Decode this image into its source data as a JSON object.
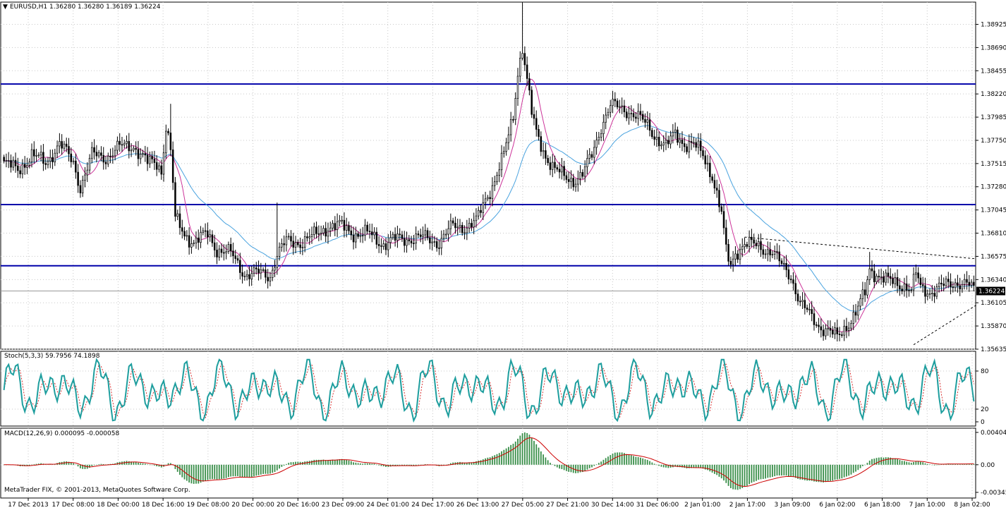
{
  "header": {
    "symbol_line": "EURUSD,H1  1.36280 1.36280 1.36189 1.36224",
    "collapse_glyph": "▼"
  },
  "copyright": "MetaTrader FIX, © 2001-2013, MetaQuotes Software Corp.",
  "colors": {
    "bull": "#ffffff",
    "bear": "#000000",
    "ma_fast": "#cc3399",
    "ma_slow": "#4aa3df",
    "hline": "#0000aa",
    "stoch_main": "#1e9e9e",
    "stoch_signal": "#cc0000",
    "macd_hist": "#3a8f4a",
    "macd_signal": "#cc0000",
    "grid": "#c8c8c8"
  },
  "chart_data": [
    {
      "type": "candlestick",
      "panel": "price",
      "ylim": [
        1.35635,
        1.3915
      ],
      "grid": true,
      "yticks": [
        "1.38925",
        "1.38690",
        "1.38455",
        "1.38220",
        "1.37985",
        "1.37750",
        "1.37515",
        "1.37280",
        "1.37045",
        "1.36810",
        "1.36575",
        "1.36340",
        "1.36105",
        "1.35870",
        "1.35635"
      ],
      "current_price": "1.36224",
      "xticks": [
        "17 Dec 2013",
        "17 Dec 08:00",
        "18 Dec 00:00",
        "18 Dec 16:00",
        "19 Dec 08:00",
        "20 Dec 00:00",
        "20 Dec 16:00",
        "23 Dec 09:00",
        "24 Dec 01:00",
        "24 Dec 17:00",
        "26 Dec 13:00",
        "27 Dec 05:00",
        "27 Dec 21:00",
        "30 Dec 14:00",
        "31 Dec 06:00",
        "2 Jan 01:00",
        "2 Jan 17:00",
        "3 Jan 09:00",
        "6 Jan 02:00",
        "6 Jan 18:00",
        "7 Jan 10:00",
        "8 Jan 02:00"
      ],
      "horizontal_levels": [
        1.3832,
        1.371,
        1.3648
      ],
      "trendlines": [
        {
          "from": [
            320,
            1.3677
          ],
          "to": [
            420,
            1.3655
          ]
        },
        {
          "from": [
            393,
            1.3568
          ],
          "to": [
            420,
            1.3608
          ]
        }
      ],
      "close_path": [
        [
          0,
          1.3752
        ],
        [
          6,
          1.3745
        ],
        [
          12,
          1.376
        ],
        [
          18,
          1.3752
        ],
        [
          24,
          1.3772
        ],
        [
          30,
          1.3752
        ],
        [
          33,
          1.3728
        ],
        [
          38,
          1.376
        ],
        [
          44,
          1.3758
        ],
        [
          50,
          1.3768
        ],
        [
          56,
          1.377
        ],
        [
          62,
          1.3752
        ],
        [
          66,
          1.3752
        ],
        [
          68,
          1.3745
        ],
        [
          70,
          1.379
        ],
        [
          72,
          1.3765
        ],
        [
          74,
          1.3695
        ],
        [
          78,
          1.368
        ],
        [
          82,
          1.3672
        ],
        [
          88,
          1.368
        ],
        [
          92,
          1.3665
        ],
        [
          98,
          1.366
        ],
        [
          104,
          1.364
        ],
        [
          110,
          1.364
        ],
        [
          115,
          1.3638
        ],
        [
          118,
          1.366
        ],
        [
          122,
          1.3672
        ],
        [
          128,
          1.3672
        ],
        [
          134,
          1.3678
        ],
        [
          140,
          1.3688
        ],
        [
          146,
          1.3688
        ],
        [
          152,
          1.368
        ],
        [
          158,
          1.368
        ],
        [
          164,
          1.367
        ],
        [
          170,
          1.3675
        ],
        [
          176,
          1.3676
        ],
        [
          182,
          1.3676
        ],
        [
          188,
          1.3672
        ],
        [
          194,
          1.3688
        ],
        [
          200,
          1.3688
        ],
        [
          204,
          1.3692
        ],
        [
          208,
          1.3715
        ],
        [
          212,
          1.3735
        ],
        [
          216,
          1.376
        ],
        [
          218,
          1.378
        ],
        [
          220,
          1.38
        ],
        [
          222,
          1.3845
        ],
        [
          224,
          1.387
        ],
        [
          226,
          1.3835
        ],
        [
          228,
          1.3802
        ],
        [
          230,
          1.3782
        ],
        [
          234,
          1.376
        ],
        [
          238,
          1.3745
        ],
        [
          242,
          1.3738
        ],
        [
          246,
          1.3735
        ],
        [
          250,
          1.374
        ],
        [
          254,
          1.376
        ],
        [
          258,
          1.379
        ],
        [
          262,
          1.381
        ],
        [
          266,
          1.3808
        ],
        [
          270,
          1.3805
        ],
        [
          274,
          1.3798
        ],
        [
          278,
          1.379
        ],
        [
          282,
          1.3778
        ],
        [
          286,
          1.3768
        ],
        [
          290,
          1.3782
        ],
        [
          294,
          1.3772
        ],
        [
          298,
          1.377
        ],
        [
          302,
          1.376
        ],
        [
          306,
          1.374
        ],
        [
          308,
          1.372
        ],
        [
          310,
          1.37
        ],
        [
          312,
          1.3662
        ],
        [
          314,
          1.3648
        ],
        [
          316,
          1.3662
        ],
        [
          320,
          1.367
        ],
        [
          326,
          1.3668
        ],
        [
          332,
          1.3662
        ],
        [
          336,
          1.3648
        ],
        [
          340,
          1.3638
        ],
        [
          344,
          1.361
        ],
        [
          348,
          1.3598
        ],
        [
          352,
          1.3588
        ],
        [
          356,
          1.3582
        ],
        [
          360,
          1.3575
        ],
        [
          364,
          1.3588
        ],
        [
          368,
          1.36
        ],
        [
          372,
          1.362
        ],
        [
          374,
          1.3645
        ],
        [
          378,
          1.3638
        ],
        [
          382,
          1.3632
        ],
        [
          386,
          1.363
        ],
        [
          390,
          1.3628
        ],
        [
          392,
          1.3622
        ],
        [
          394,
          1.364
        ],
        [
          396,
          1.3625
        ],
        [
          400,
          1.3622
        ],
        [
          404,
          1.3626
        ],
        [
          408,
          1.3628
        ],
        [
          412,
          1.3632
        ],
        [
          416,
          1.363
        ],
        [
          419,
          1.3622
        ]
      ]
    },
    {
      "type": "line",
      "panel": "stochastic",
      "title": "Stoch(5,3,3) 59.7956 74.1898",
      "ylim": [
        0,
        100
      ],
      "yticks": [
        "80",
        "20",
        "0"
      ],
      "levels": [
        80,
        20
      ]
    },
    {
      "type": "histogram",
      "panel": "macd",
      "title": "MACD(12,26,9) 0.000095 -0.000058",
      "ylim": [
        -0.003457,
        0.004044
      ],
      "yticks": [
        "0.004044",
        "0.00",
        "-0.003457"
      ]
    }
  ]
}
